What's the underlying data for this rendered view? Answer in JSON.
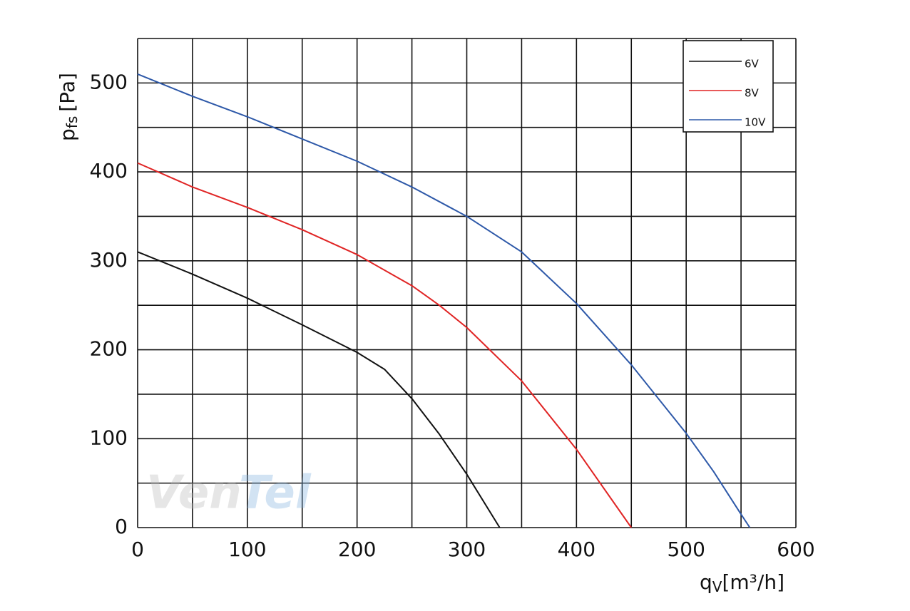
{
  "chart_data": {
    "type": "line",
    "xlabel": {
      "main": "q",
      "sub": "V",
      "unit": "[m³/h]"
    },
    "ylabel": {
      "main": "p",
      "sub": "fs",
      "unit": "[Pa]"
    },
    "watermark": {
      "main": "Ven",
      "accent": "Tel"
    },
    "xlim": [
      0,
      600
    ],
    "xticks": [
      0,
      100,
      200,
      300,
      400,
      500,
      600
    ],
    "ylim": [
      0,
      550
    ],
    "yticks": [
      0,
      100,
      200,
      300,
      400,
      500
    ],
    "xgrid": [
      0,
      50,
      100,
      150,
      200,
      250,
      300,
      350,
      400,
      450,
      500,
      550,
      600
    ],
    "ygrid": [
      0,
      50,
      100,
      150,
      200,
      250,
      300,
      350,
      400,
      450,
      500,
      550
    ],
    "grid": true,
    "legend": "upper right",
    "series": [
      {
        "name": "6V",
        "color": "#111111",
        "x": [
          0,
          50,
          100,
          150,
          200,
          225,
          250,
          275,
          300,
          330
        ],
        "values": [
          310,
          285,
          258,
          228,
          197,
          178,
          145,
          105,
          60,
          0
        ]
      },
      {
        "name": "8V",
        "color": "#e02424",
        "x": [
          0,
          50,
          100,
          150,
          200,
          250,
          275,
          300,
          350,
          400,
          450
        ],
        "values": [
          410,
          383,
          360,
          335,
          307,
          272,
          250,
          225,
          165,
          88,
          0
        ]
      },
      {
        "name": "10V",
        "color": "#2d58a8",
        "x": [
          0,
          50,
          100,
          150,
          200,
          250,
          300,
          350,
          400,
          450,
          500,
          525,
          550,
          558
        ],
        "values": [
          510,
          485,
          462,
          437,
          412,
          383,
          350,
          310,
          252,
          183,
          106,
          63,
          15,
          0
        ]
      }
    ]
  }
}
